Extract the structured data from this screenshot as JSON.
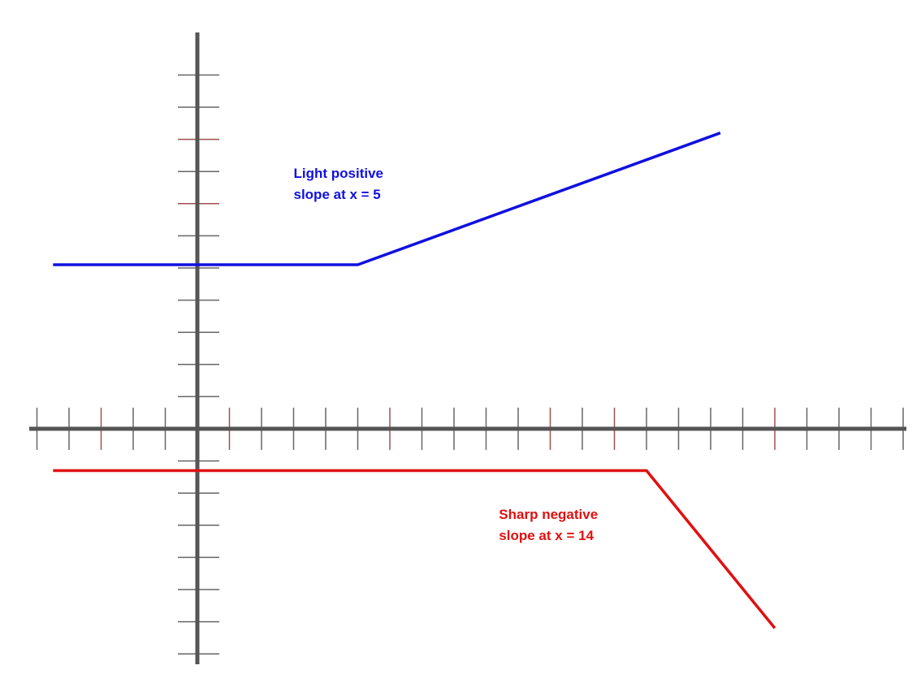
{
  "chart_data": {
    "type": "line",
    "title": "",
    "xlabel": "",
    "ylabel": "",
    "xlim": [
      -5.2,
      22
    ],
    "ylim": [
      -7.2,
      12.3
    ],
    "x_ticks": [
      -5,
      -4,
      -3,
      -2,
      -1,
      1,
      2,
      3,
      4,
      5,
      6,
      7,
      8,
      9,
      10,
      11,
      12,
      13,
      14,
      15,
      16,
      17,
      18,
      19,
      20,
      21,
      22
    ],
    "x_tick_colors": {
      "-3": "#a05050",
      "1": "#a05050",
      "6": "#a05050",
      "11": "#a05050",
      "13": "#a05050",
      "18": "#a05050"
    },
    "y_ticks": [
      -7,
      -6,
      -5,
      -4,
      -3,
      -2,
      -1,
      1,
      2,
      3,
      4,
      5,
      6,
      7,
      8,
      9,
      10,
      11
    ],
    "y_tick_colors": {
      "9": "#a05050",
      "7": "#a05050"
    },
    "grid": false,
    "series": [
      {
        "color": "#1010e0",
        "points": [
          [
            -4.5,
            5.1
          ],
          [
            5,
            5.1
          ],
          [
            16.3,
            9.2
          ]
        ]
      },
      {
        "color": "#e01010",
        "points": [
          [
            -4.5,
            -1.3
          ],
          [
            14,
            -1.3
          ],
          [
            18,
            -6.2
          ]
        ]
      }
    ],
    "annotations": [
      {
        "lines": [
          "Light positive",
          "slope at x = 5"
        ],
        "color": "#1010e0",
        "at": [
          3,
          7.8
        ]
      },
      {
        "lines": [
          "Sharp negative",
          "slope at x = 14"
        ],
        "color": "#e01010",
        "at": [
          9.4,
          -2.8
        ]
      }
    ]
  }
}
